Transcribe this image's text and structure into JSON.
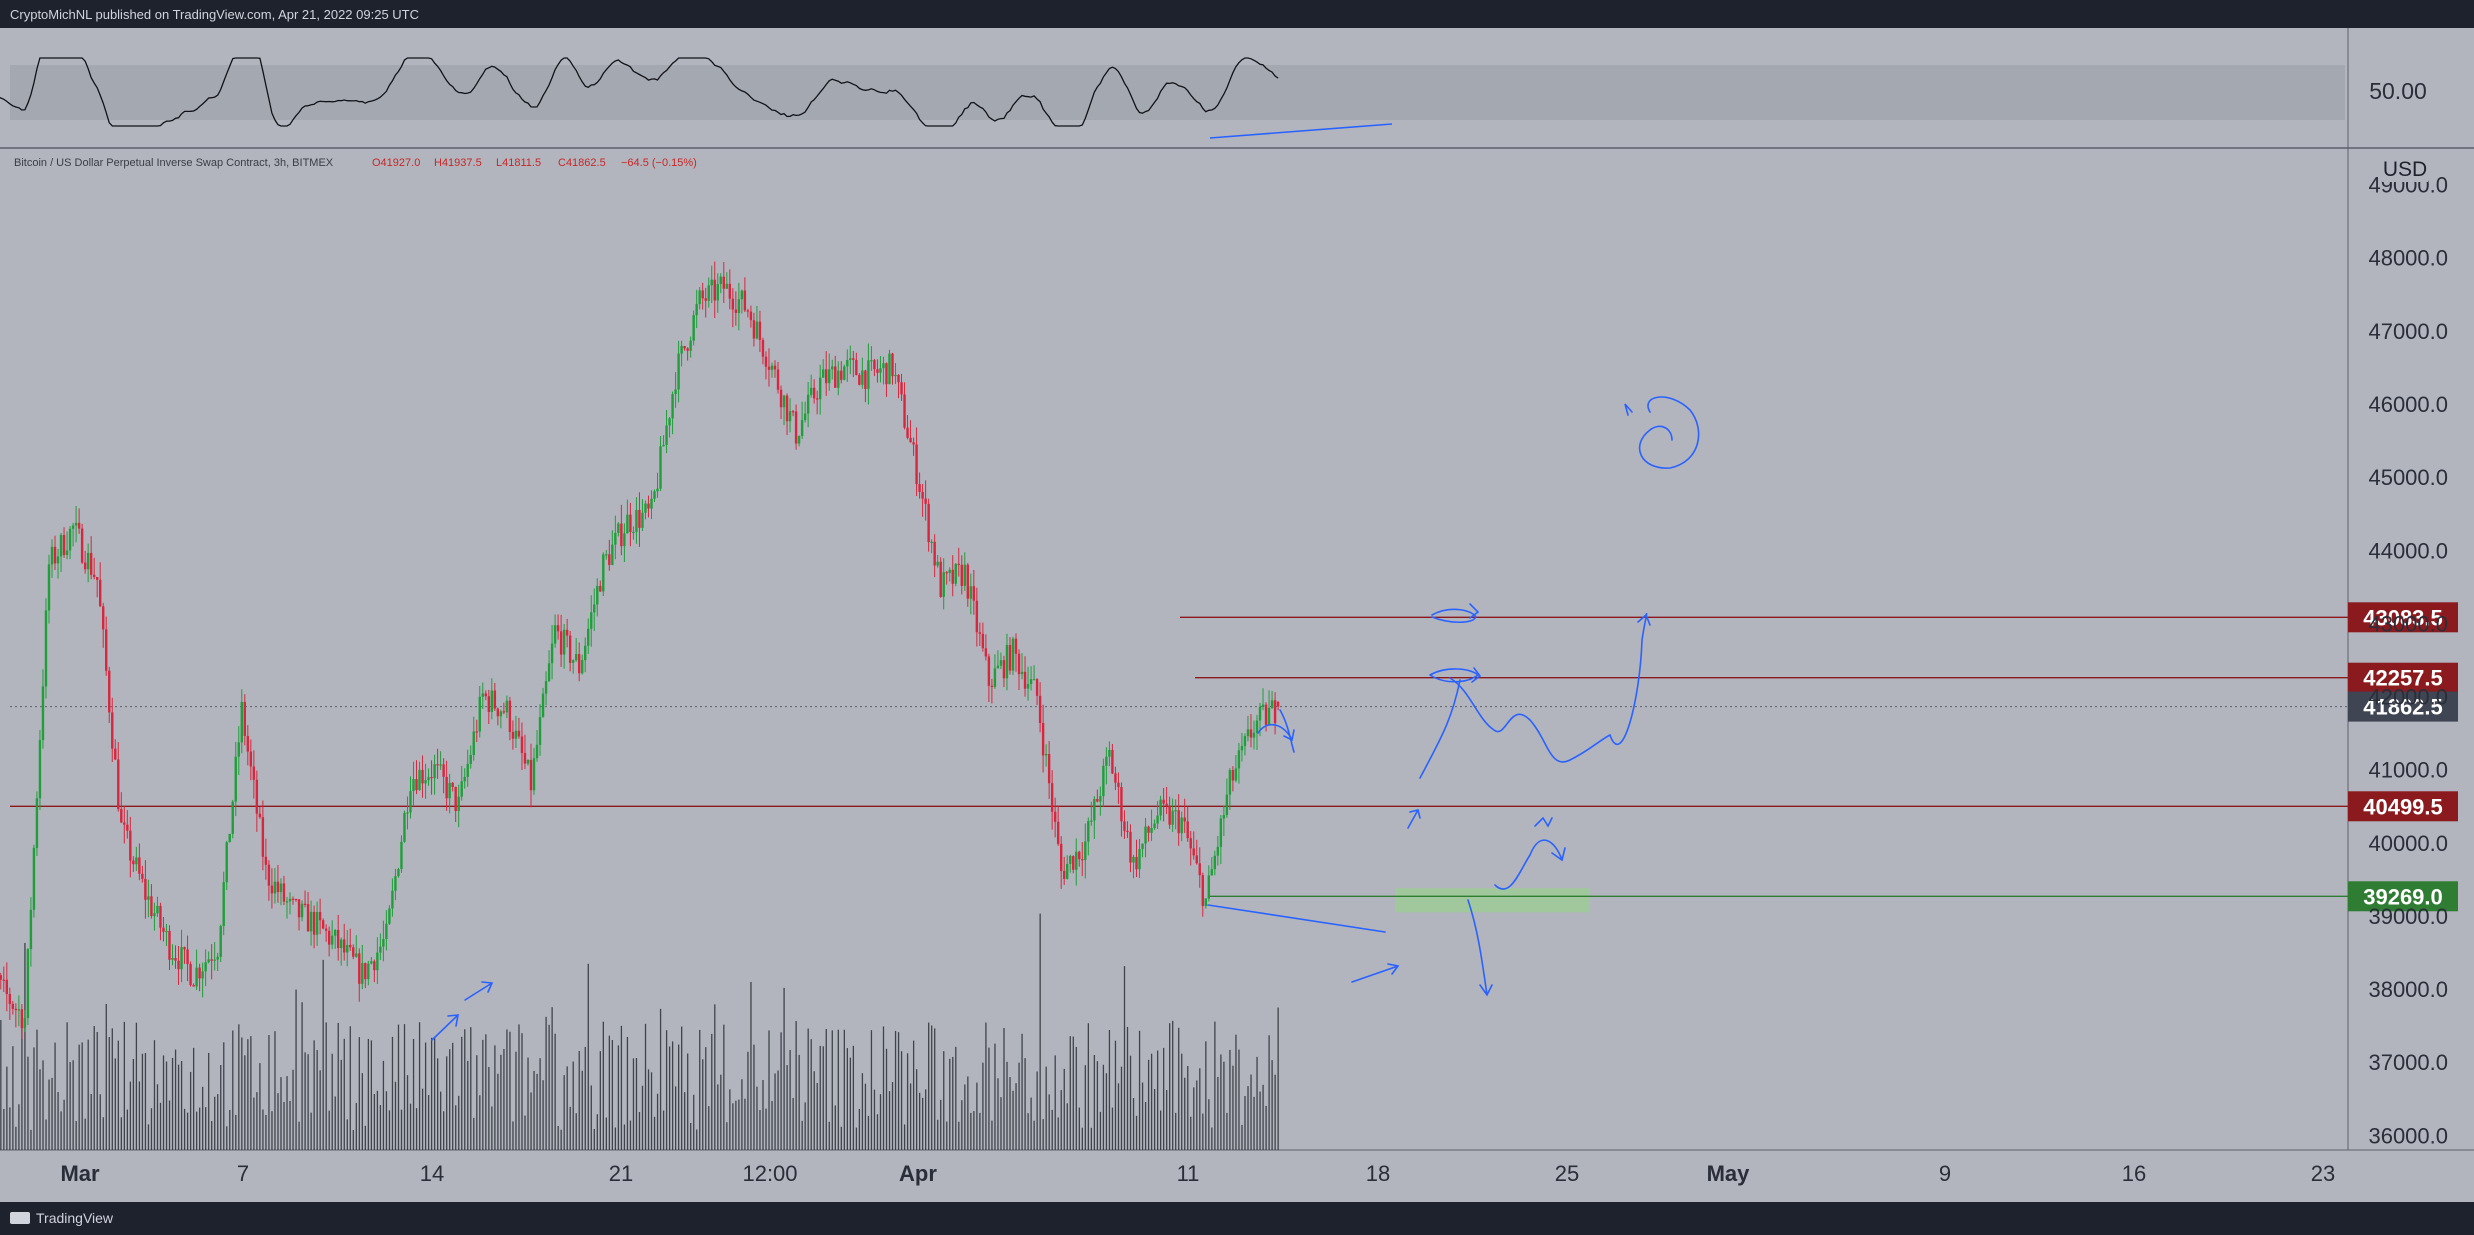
{
  "header": {
    "published_text": "CryptoMichNL published on TradingView.com, Apr 21, 2022 09:25 UTC"
  },
  "footer": {
    "brand": "TradingView"
  },
  "chart_data": [
    {
      "type": "line",
      "panel": "oscillator",
      "level_label": "50.00",
      "grid": false
    },
    {
      "type": "candlestick",
      "symbol_line": "Bitcoin / US Dollar Perpetual Inverse Swap Contract, 3h, BITMEX",
      "ohlc": {
        "open": "O41927.0",
        "high": "H41937.5",
        "low": "L41811.5",
        "close": "C41862.5",
        "change": "−64.5 (−0.15%)"
      },
      "currency": "USD",
      "ylim": [
        35800,
        49500
      ],
      "y_ticks": [
        "49000.0",
        "48000.0",
        "47000.0",
        "46000.0",
        "45000.0",
        "44000.0",
        "43000.0",
        "42000.0",
        "41000.0",
        "40000.0",
        "39000.0",
        "38000.0",
        "37000.0",
        "36000.0"
      ],
      "x_ticks": [
        "Mar",
        "7",
        "14",
        "21",
        "12:00",
        "Apr",
        "11",
        "18",
        "25",
        "May",
        "9",
        "16",
        "23"
      ],
      "price_path": [
        [
          "Feb 26",
          38900
        ],
        [
          "Feb 27",
          38000
        ],
        [
          "Feb 28",
          37600
        ],
        [
          "Mar 1",
          43800
        ],
        [
          "Mar 2",
          44300
        ],
        [
          "Mar 3",
          43600
        ],
        [
          "Mar 4",
          40200
        ],
        [
          "Mar 5",
          39300
        ],
        [
          "Mar 6",
          38600
        ],
        [
          "Mar 7",
          38200
        ],
        [
          "Mar 8",
          38600
        ],
        [
          "Mar 9",
          41800
        ],
        [
          "Mar 10",
          39600
        ],
        [
          "Mar 11",
          39100
        ],
        [
          "Mar 12",
          38900
        ],
        [
          "Mar 13",
          38600
        ],
        [
          "Mar 14",
          38200
        ],
        [
          "Mar 15",
          38700
        ],
        [
          "Mar 16",
          40900
        ],
        [
          "Mar 17",
          41000
        ],
        [
          "Mar 18",
          40500
        ],
        [
          "Mar 19",
          42000
        ],
        [
          "Mar 20",
          41800
        ],
        [
          "Mar 21",
          40800
        ],
        [
          "Mar 22",
          42900
        ],
        [
          "Mar 23",
          42400
        ],
        [
          "Mar 24",
          43800
        ],
        [
          "Mar 25",
          44400
        ],
        [
          "Mar 26",
          44500
        ],
        [
          "Mar 27",
          46400
        ],
        [
          "Mar 28",
          47400
        ],
        [
          "Mar 29",
          47600
        ],
        [
          "Mar 30",
          47300
        ],
        [
          "Mar 31",
          46500
        ],
        [
          "Apr 1",
          45600
        ],
        [
          "Apr 2",
          46300
        ],
        [
          "Apr 3",
          46500
        ],
        [
          "Apr 4",
          46400
        ],
        [
          "Apr 5",
          46500
        ],
        [
          "Apr 6",
          45100
        ],
        [
          "Apr 7",
          43500
        ],
        [
          "Apr 8",
          43700
        ],
        [
          "Apr 9",
          42200
        ],
        [
          "Apr 10",
          42600
        ],
        [
          "Apr 11",
          42000
        ],
        [
          "Apr 12",
          39600
        ],
        [
          "Apr 13",
          40000
        ],
        [
          "Apr 14",
          41200
        ],
        [
          "Apr 15",
          39700
        ],
        [
          "Apr 16",
          40400
        ],
        [
          "Apr 17",
          40300
        ],
        [
          "Apr 18",
          39200
        ],
        [
          "Apr 19",
          40800
        ],
        [
          "Apr 20",
          41600
        ],
        [
          "Apr 21",
          41862.5
        ]
      ],
      "horizontal_levels": [
        {
          "label": "43083.5",
          "value": 43083.5,
          "color": "#8b1a1f"
        },
        {
          "label": "42257.5",
          "value": 42257.5,
          "color": "#8b1a1f"
        },
        {
          "label": "41862.5",
          "value": 41862.5,
          "color": "#3f4553"
        },
        {
          "label": "40499.5",
          "value": 40499.5,
          "color": "#8b1a1f"
        },
        {
          "label": "39269.0",
          "value": 39269.0,
          "color": "#2e7d32"
        }
      ],
      "support_zone": {
        "from": 39050,
        "to": 39380,
        "color": "#9ad08f"
      },
      "colors": {
        "background": "#b2b5be",
        "up": "#1f9e3a",
        "down": "#d7263d",
        "volume": "#2c2f36",
        "drawings": "#2962ff"
      },
      "grid": false
    }
  ]
}
